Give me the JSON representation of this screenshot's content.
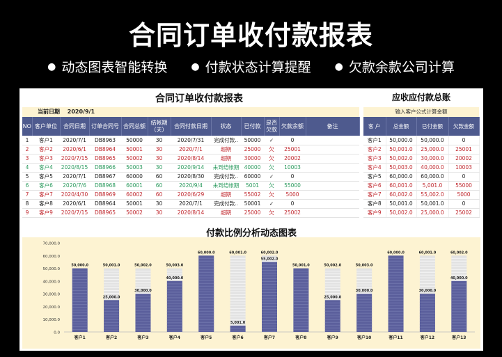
{
  "banner": {
    "title": "合同订单收付款报表",
    "features": [
      "动态图表智能转换",
      "付款状态计算提醒",
      "欠款余款公司计算"
    ]
  },
  "report": {
    "title": "合同订单收付款报表",
    "date_label": "当前日期",
    "date_value": "2020/9/1",
    "headers": [
      "NO",
      "客户单位",
      "合同日期",
      "订单合同号",
      "合同总额",
      "结帐期（天）",
      "合同付款日期",
      "状态",
      "已付款",
      "是否欠款",
      "欠款余额",
      "备注"
    ],
    "rows": [
      {
        "color": "black",
        "cells": [
          "1",
          "客户1",
          "2020/7/1",
          "DB8963",
          "50000",
          "30",
          "2020/7/31",
          "完成付款..",
          "50000",
          "✓",
          "0",
          ""
        ]
      },
      {
        "color": "red",
        "cells": [
          "2",
          "客户2",
          "2020/6/1",
          "DB8964",
          "50001",
          "30",
          "2020/7/1",
          "超期",
          "25000",
          "欠",
          "25001",
          ""
        ]
      },
      {
        "color": "red",
        "cells": [
          "3",
          "客户3",
          "2020/7/15",
          "DB8965",
          "50002",
          "30",
          "2020/8/14",
          "超期",
          "30000",
          "欠",
          "20002",
          ""
        ]
      },
      {
        "color": "green",
        "cells": [
          "4",
          "客户4",
          "2020/8/15",
          "DB8966",
          "50003",
          "30",
          "2020/9/14",
          "未到结帐期",
          "40000",
          "欠",
          "10003",
          ""
        ]
      },
      {
        "color": "black",
        "cells": [
          "5",
          "客户5",
          "2020/7/1",
          "DB8967",
          "60000",
          "60",
          "2020/8/30",
          "完成付款..",
          "60000",
          "✓",
          "0",
          ""
        ]
      },
      {
        "color": "green",
        "cells": [
          "6",
          "客户6",
          "2020/7/6",
          "DB8968",
          "60001",
          "60",
          "2020/9/4",
          "未到结帐期",
          "5001",
          "欠",
          "55000",
          ""
        ]
      },
      {
        "color": "red",
        "cells": [
          "7",
          "客户7",
          "2020/4/30",
          "DB8969",
          "60002",
          "60",
          "2020/6/29",
          "超期",
          "55002",
          "欠",
          "5000",
          ""
        ]
      },
      {
        "color": "black",
        "cells": [
          "8",
          "客户8",
          "2020/6/1",
          "DB8964",
          "50001",
          "30",
          "2020/7/1",
          "完成付款..",
          "50001",
          "✓",
          "0",
          ""
        ]
      },
      {
        "color": "red",
        "cells": [
          "9",
          "客户9",
          "2020/7/15",
          "DB8965",
          "50002",
          "30",
          "2020/8/14",
          "超期",
          "25000",
          "欠",
          "25002",
          ""
        ]
      }
    ]
  },
  "summary": {
    "title": "应收应付款总账",
    "subtitle": "输入客户公式计算金额",
    "headers": [
      "客 户",
      "总金额",
      "已付金额",
      "欠款金额"
    ],
    "rows": [
      {
        "color": "black",
        "cells": [
          "客户1",
          "50,000.0",
          "50,000.0",
          "0"
        ]
      },
      {
        "color": "red",
        "cells": [
          "客户2",
          "50,001.0",
          "25,000.0",
          "25001"
        ]
      },
      {
        "color": "red",
        "cells": [
          "客户3",
          "50,002.0",
          "30,000.0",
          "20002"
        ]
      },
      {
        "color": "red",
        "cells": [
          "客户4",
          "50,003.0",
          "40,000.0",
          "10003"
        ]
      },
      {
        "color": "black",
        "cells": [
          "客户5",
          "60,000.0",
          "60,000.0",
          "0"
        ]
      },
      {
        "color": "red",
        "cells": [
          "客户6",
          "60,001.0",
          "5,001.0",
          "55000"
        ]
      },
      {
        "color": "red",
        "cells": [
          "客户7",
          "60,002.0",
          "55,002.0",
          "5000"
        ]
      },
      {
        "color": "black",
        "cells": [
          "客户8",
          "50,001.0",
          "50,001.0",
          "0"
        ]
      },
      {
        "color": "red",
        "cells": [
          "客户9",
          "50,002.0",
          "25,000.0",
          "25002"
        ]
      }
    ]
  },
  "colors": {
    "header_bg": "#4e5a8e",
    "paid_bar": "#5b5f9c",
    "total_bar": "#e2e2e2",
    "chart_bg": "#fdf3d2",
    "red_text": "#c0272d",
    "green_text": "#2a9a5d"
  },
  "chart_data": {
    "type": "bar",
    "title": "付款比例分析动态图表",
    "categories": [
      "客户1",
      "客户2",
      "客户3",
      "客户4",
      "客户5",
      "客户6",
      "客户7",
      "客户8",
      "客户9",
      "客户10",
      "客户11",
      "客户12",
      "客户13"
    ],
    "series": [
      {
        "name": "",
        "values": [
          50000,
          50001,
          50002,
          50003,
          60000,
          60001,
          60002,
          50001,
          50002,
          50003,
          60000,
          60001,
          60002
        ]
      },
      {
        "name": "",
        "values": [
          50000,
          25000,
          30000,
          40000,
          60000,
          5001,
          55002,
          50001,
          25000,
          30000,
          60000,
          30000,
          40000
        ]
      }
    ],
    "total_labels": [
      "",
      "50,001.0",
      "50,002.0",
      "50,003.0",
      "",
      "60,001.0",
      "60,002.0",
      "",
      "50,002.0",
      "50,003.0",
      "",
      "60,001.0",
      "60,002.0"
    ],
    "paid_labels": [
      "50,000.0",
      "25,000.0",
      "30,000.0",
      "40,000.0",
      "60,000.0",
      "5,001.0",
      "55,002.0",
      "50,001.0",
      "25,000.0",
      "30,000.0",
      "60,000.0",
      "30,000.0",
      "40,000.0"
    ],
    "yticks": [
      "0.0",
      "10,000.0",
      "20,000.0",
      "30,000.0",
      "40,000.0",
      "50,000.0",
      "60,000.0",
      "70,000.0"
    ],
    "ylim": [
      0,
      70000
    ],
    "grid": false,
    "legend": "none"
  }
}
